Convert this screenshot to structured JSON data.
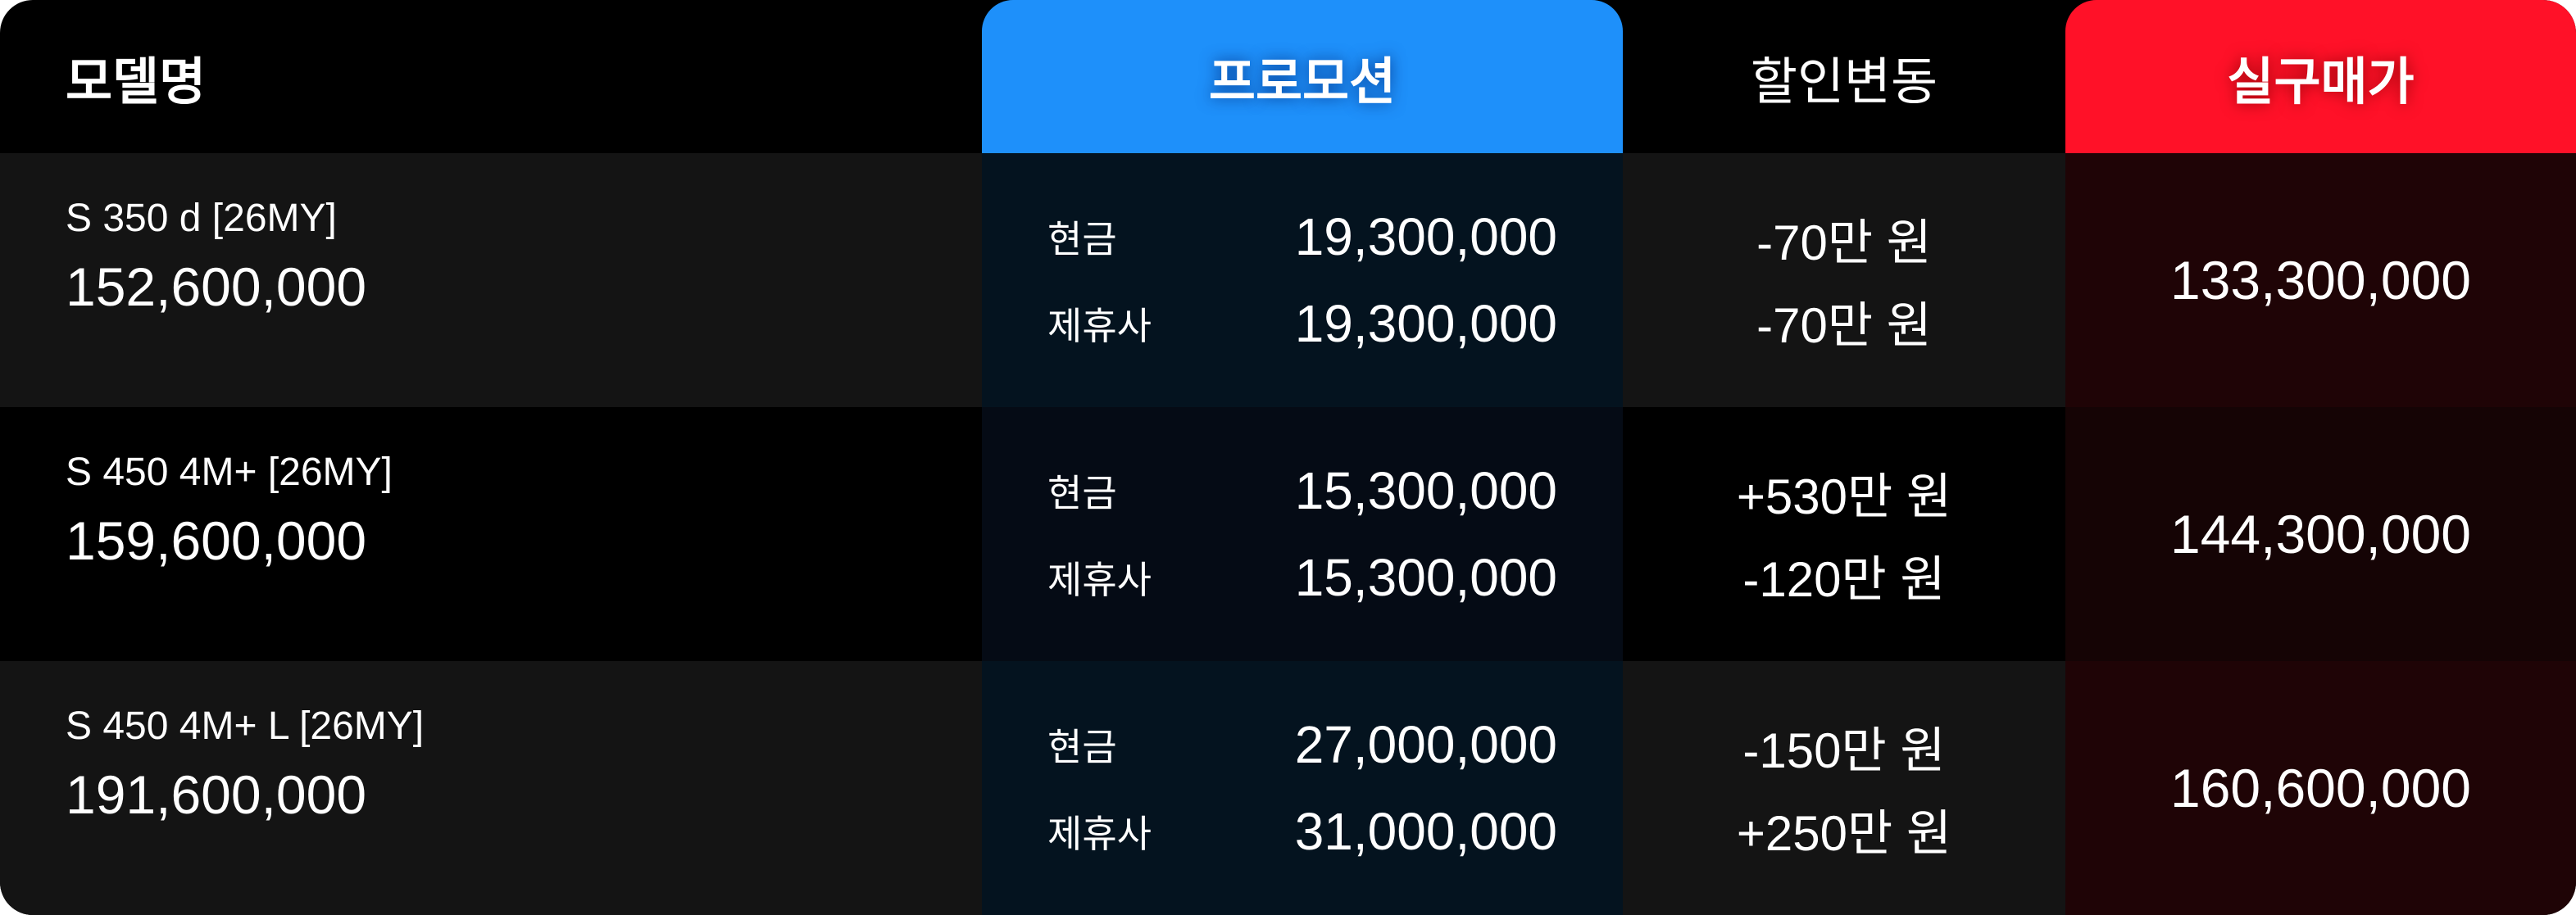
{
  "headers": {
    "model": "모델명",
    "promotion": "프로모션",
    "discount_change": "할인변동",
    "final_price": "실구매가"
  },
  "colors": {
    "promotion_header": "#1e90fa",
    "final_header": "#ff1128"
  },
  "rows": [
    {
      "model": "S 350 d [26MY]",
      "list_price": "152,600,000",
      "promos": [
        {
          "label": "현금",
          "value": "19,300,000"
        },
        {
          "label": "제휴사",
          "value": "19,300,000"
        }
      ],
      "changes": [
        "-70만 원",
        "-70만 원"
      ],
      "final": "133,300,000"
    },
    {
      "model": "S 450 4M+ [26MY]",
      "list_price": "159,600,000",
      "promos": [
        {
          "label": "현금",
          "value": "15,300,000"
        },
        {
          "label": "제휴사",
          "value": "15,300,000"
        }
      ],
      "changes": [
        "+530만 원",
        "-120만 원"
      ],
      "final": "144,300,000"
    },
    {
      "model": "S 450 4M+ L [26MY]",
      "list_price": "191,600,000",
      "promos": [
        {
          "label": "현금",
          "value": "27,000,000"
        },
        {
          "label": "제휴사",
          "value": "31,000,000"
        }
      ],
      "changes": [
        "-150만 원",
        "+250만 원"
      ],
      "final": "160,600,000"
    }
  ]
}
